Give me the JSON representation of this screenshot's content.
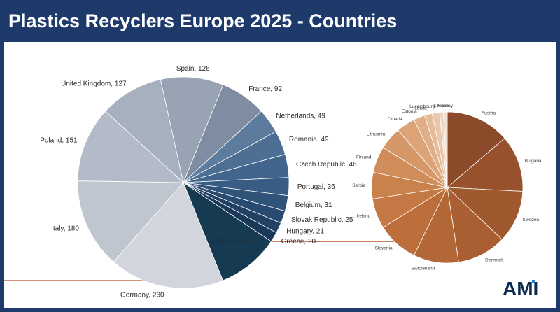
{
  "header": {
    "title": "Plastics Recyclers Europe 2025 - Countries"
  },
  "chart_data": [
    {
      "type": "pie",
      "series": [
        {
          "labels": [
            "Germany",
            "Italy",
            "Poland",
            "United Kingdom",
            "Spain",
            "France",
            "Netherlands",
            "Romania",
            "Czech Republic",
            "Portugal",
            "Belgium",
            "Slovak Republic",
            "Hungary",
            "Greece",
            "Others"
          ],
          "values": [
            230,
            180,
            151,
            127,
            126,
            92,
            49,
            49,
            46,
            36,
            31,
            25,
            21,
            20,
            124
          ],
          "colors": [
            "#d2d6dc",
            "#c0c6d0",
            "#b2bbc7",
            "#a6b0bf",
            "#98a4b4",
            "#7e8da2",
            "#5d7b9c",
            "#4d6f94",
            "#41658c",
            "#385c83",
            "#30537a",
            "#294a70",
            "#224165",
            "#1b385a",
            "#163a52"
          ]
        }
      ]
    },
    {
      "type": "pie",
      "series": [
        {
          "labels": [
            "Austria",
            "Bulgaria",
            "Sweden",
            "Denmark",
            "Switzerland",
            "Slovenia",
            "Ireland",
            "Serbia",
            "Finland",
            "Lithuania",
            "Croatia",
            "Estonia",
            "Latvia",
            "Luxembourg",
            "Kosovo",
            "Norway"
          ],
          "values": [
            17,
            15,
            14,
            13,
            12,
            11,
            8,
            7,
            7,
            6,
            5,
            3,
            2,
            2,
            1,
            1
          ],
          "colors": [
            "#8b4a2a",
            "#97512c",
            "#a0582f",
            "#aa5f32",
            "#b46736",
            "#bd6f3b",
            "#c47843",
            "#ca824d",
            "#d08c59",
            "#d59767",
            "#dba376",
            "#e0af88",
            "#e5bc9a",
            "#eac8ad",
            "#efd5c1",
            "#f3e1d3"
          ]
        }
      ]
    }
  ],
  "logo": {
    "text": "AMI",
    "accent": "#2e7fd0",
    "brand": "#0d2b52"
  }
}
